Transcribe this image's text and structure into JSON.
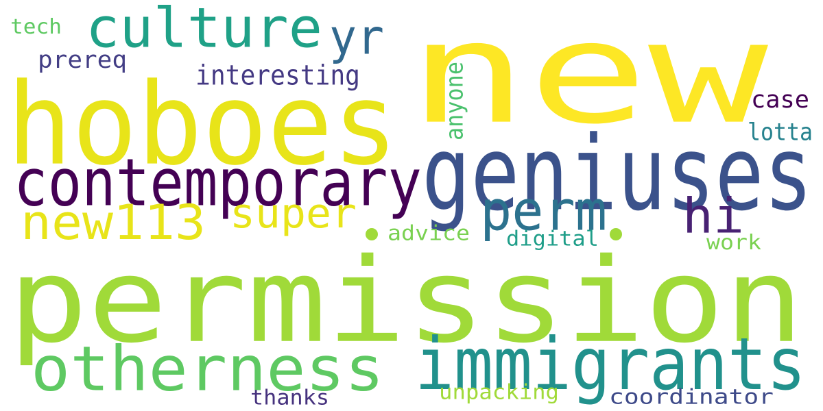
{
  "colors": {
    "background": "#ffffff",
    "palette": [
      "#fde725",
      "#a0da39",
      "#4ac16d",
      "#1fa187",
      "#277f8e",
      "#365c8d",
      "#46327e",
      "#440154"
    ]
  },
  "words": [
    {
      "key": "new",
      "text": "new",
      "color": "#fde725"
    },
    {
      "key": "permission",
      "text": "permission",
      "color": "#a0da39"
    },
    {
      "key": "hoboes",
      "text": "hoboes",
      "color": "#e8e419"
    },
    {
      "key": "geniuses",
      "text": "geniuses",
      "color": "#3b528b"
    },
    {
      "key": "contemporary",
      "text": "contemporary",
      "color": "#440154"
    },
    {
      "key": "culture",
      "text": "culture",
      "color": "#1fa187"
    },
    {
      "key": "immigrants",
      "text": "immigrants",
      "color": "#21918c"
    },
    {
      "key": "otherness",
      "text": "otherness",
      "color": "#5ec962"
    },
    {
      "key": "new113",
      "text": "new113",
      "color": "#e8e419"
    },
    {
      "key": "yr",
      "text": "yr",
      "color": "#31688e"
    },
    {
      "key": "perm",
      "text": "perm",
      "color": "#2c728e"
    },
    {
      "key": "hi",
      "text": "hi",
      "color": "#482173"
    },
    {
      "key": "super",
      "text": "super",
      "color": "#e8e419"
    },
    {
      "key": "interesting",
      "text": "interesting",
      "color": "#443983"
    },
    {
      "key": "prereq",
      "text": "prereq",
      "color": "#433e85"
    },
    {
      "key": "tech",
      "text": "tech",
      "color": "#5ec962"
    },
    {
      "key": "anyone",
      "text": "anyone",
      "color": "#4ac16d"
    },
    {
      "key": "case",
      "text": "case",
      "color": "#440154"
    },
    {
      "key": "lotta",
      "text": "lotta",
      "color": "#26828e"
    },
    {
      "key": "advice",
      "text": "advice",
      "color": "#7ad151"
    },
    {
      "key": "digital",
      "text": "digital",
      "color": "#1f9e89"
    },
    {
      "key": "work",
      "text": "work",
      "color": "#7ad151"
    },
    {
      "key": "thanks",
      "text": "thanks",
      "color": "#46327e"
    },
    {
      "key": "unpacking",
      "text": "unpacking",
      "color": "#a0da39"
    },
    {
      "key": "coordinator",
      "text": "coordinator",
      "color": "#3e4a89"
    }
  ],
  "dots": [
    {
      "key": "dot-left",
      "color": "#a0da39"
    },
    {
      "key": "dot-right",
      "color": "#a0da39"
    }
  ]
}
